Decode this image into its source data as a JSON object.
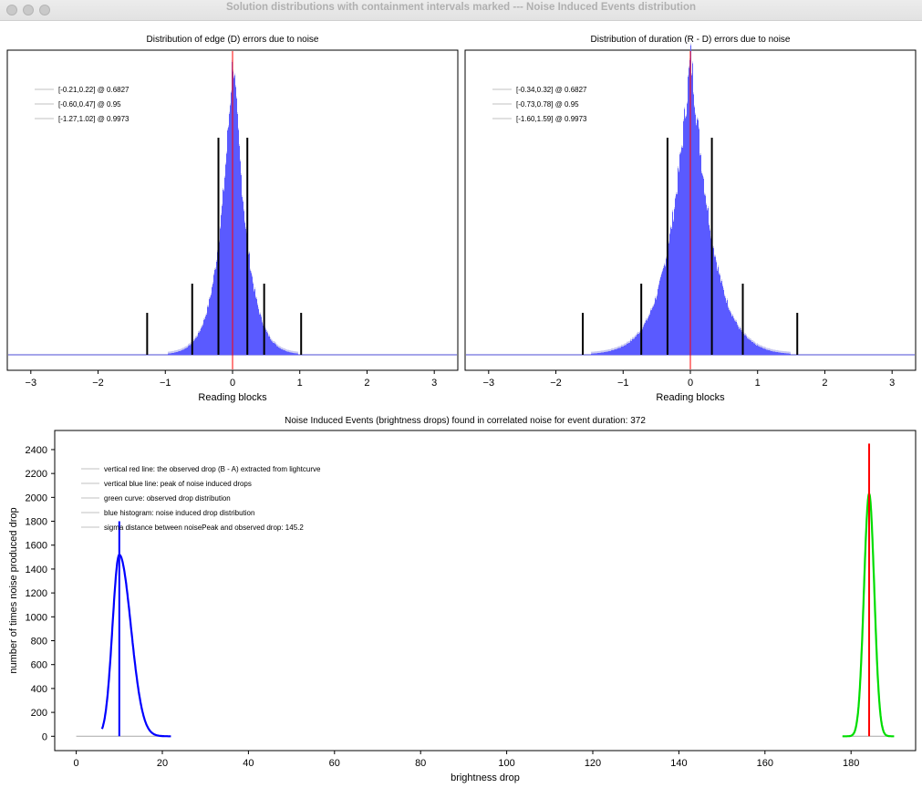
{
  "window": {
    "title": "Solution distributions with containment intervals marked --- Noise Induced Events distribution"
  },
  "chart_data": [
    {
      "type": "bar",
      "title": "Distribution of edge (D) errors due to noise",
      "xlabel": "Reading blocks",
      "xlim": [
        -3.35,
        3.35
      ],
      "xticks": [
        -3,
        -2,
        -1,
        0,
        1,
        2,
        3
      ],
      "peak_x": 0.0,
      "distribution": {
        "center": 0.0,
        "scale": 0.21,
        "shape": "laplace-like"
      },
      "colors": {
        "bars": "#5a5aff",
        "center_line": "#ff0000",
        "interval_lines": "#000000",
        "baseline": "#4b4bd6"
      },
      "legend": [
        "[-0.21,0.22] @ 0.6827",
        "[-0.60,0.47] @ 0.95",
        "[-1.27,1.02] @ 0.9973"
      ],
      "intervals": [
        {
          "low": -0.21,
          "high": 0.22,
          "confidence": 0.6827
        },
        {
          "low": -0.6,
          "high": 0.47,
          "confidence": 0.95
        },
        {
          "low": -1.27,
          "high": 1.02,
          "confidence": 0.9973
        }
      ],
      "yaxis": "hidden",
      "grid": false
    },
    {
      "type": "bar",
      "title": "Distribution of duration (R - D) errors due to noise",
      "xlabel": "Reading blocks",
      "xlim": [
        -3.35,
        3.35
      ],
      "xticks": [
        -3,
        -2,
        -1,
        0,
        1,
        2,
        3
      ],
      "peak_x": 0.0,
      "distribution": {
        "center": 0.0,
        "scale": 0.32,
        "shape": "laplace-like"
      },
      "colors": {
        "bars": "#5a5aff",
        "center_line": "#ff0000",
        "interval_lines": "#000000",
        "baseline": "#4b4bd6"
      },
      "legend": [
        "[-0.34,0.32] @ 0.6827",
        "[-0.73,0.78] @ 0.95",
        "[-1.60,1.59] @ 0.9973"
      ],
      "intervals": [
        {
          "low": -0.34,
          "high": 0.32,
          "confidence": 0.6827
        },
        {
          "low": -0.73,
          "high": 0.78,
          "confidence": 0.95
        },
        {
          "low": -1.6,
          "high": 1.59,
          "confidence": 0.9973
        }
      ],
      "yaxis": "hidden",
      "grid": false
    },
    {
      "type": "line",
      "title": "Noise Induced Events (brightness drops) found in correlated noise for event duration: 372",
      "xlabel": "brightness drop",
      "ylabel": "number of times noise produced drop",
      "xlim": [
        -5,
        195
      ],
      "ylim": [
        -120,
        2560
      ],
      "xticks": [
        0,
        20,
        40,
        60,
        80,
        100,
        120,
        140,
        160,
        180
      ],
      "yticks": [
        0,
        200,
        400,
        600,
        800,
        1000,
        1200,
        1400,
        1600,
        1800,
        2000,
        2200,
        2400
      ],
      "legend": [
        "vertical red line: the observed drop (B - A) extracted from lightcurve",
        "vertical blue line: peak of noise induced drops",
        "green curve: observed drop distribution",
        "blue histogram: noise induced drop distribution",
        "sigma distance between noisePeak and observed drop: 145.2"
      ],
      "series": [
        {
          "kind": "blue-histogram",
          "peak_x": 10.0,
          "peak_y": 1520,
          "sigma": 2.0,
          "range": [
            6,
            22
          ],
          "baseline_range": [
            0,
            22
          ]
        },
        {
          "kind": "green-curve",
          "peak_x": 184.2,
          "peak_y": 2030,
          "sigma": 1.2,
          "range": [
            178,
            190
          ],
          "baseline_range": [
            178,
            190
          ]
        }
      ],
      "vlines": [
        {
          "kind": "blue-peak-line",
          "x": 10.0,
          "ymax": 1800
        },
        {
          "kind": "red-observed-line",
          "x": 184.2,
          "ymax": 2450
        }
      ],
      "colors": {
        "blue": "#0000ff",
        "green": "#00dd00",
        "red": "#ff0000",
        "baseline": "#a8a8a8"
      },
      "grid": false
    }
  ]
}
